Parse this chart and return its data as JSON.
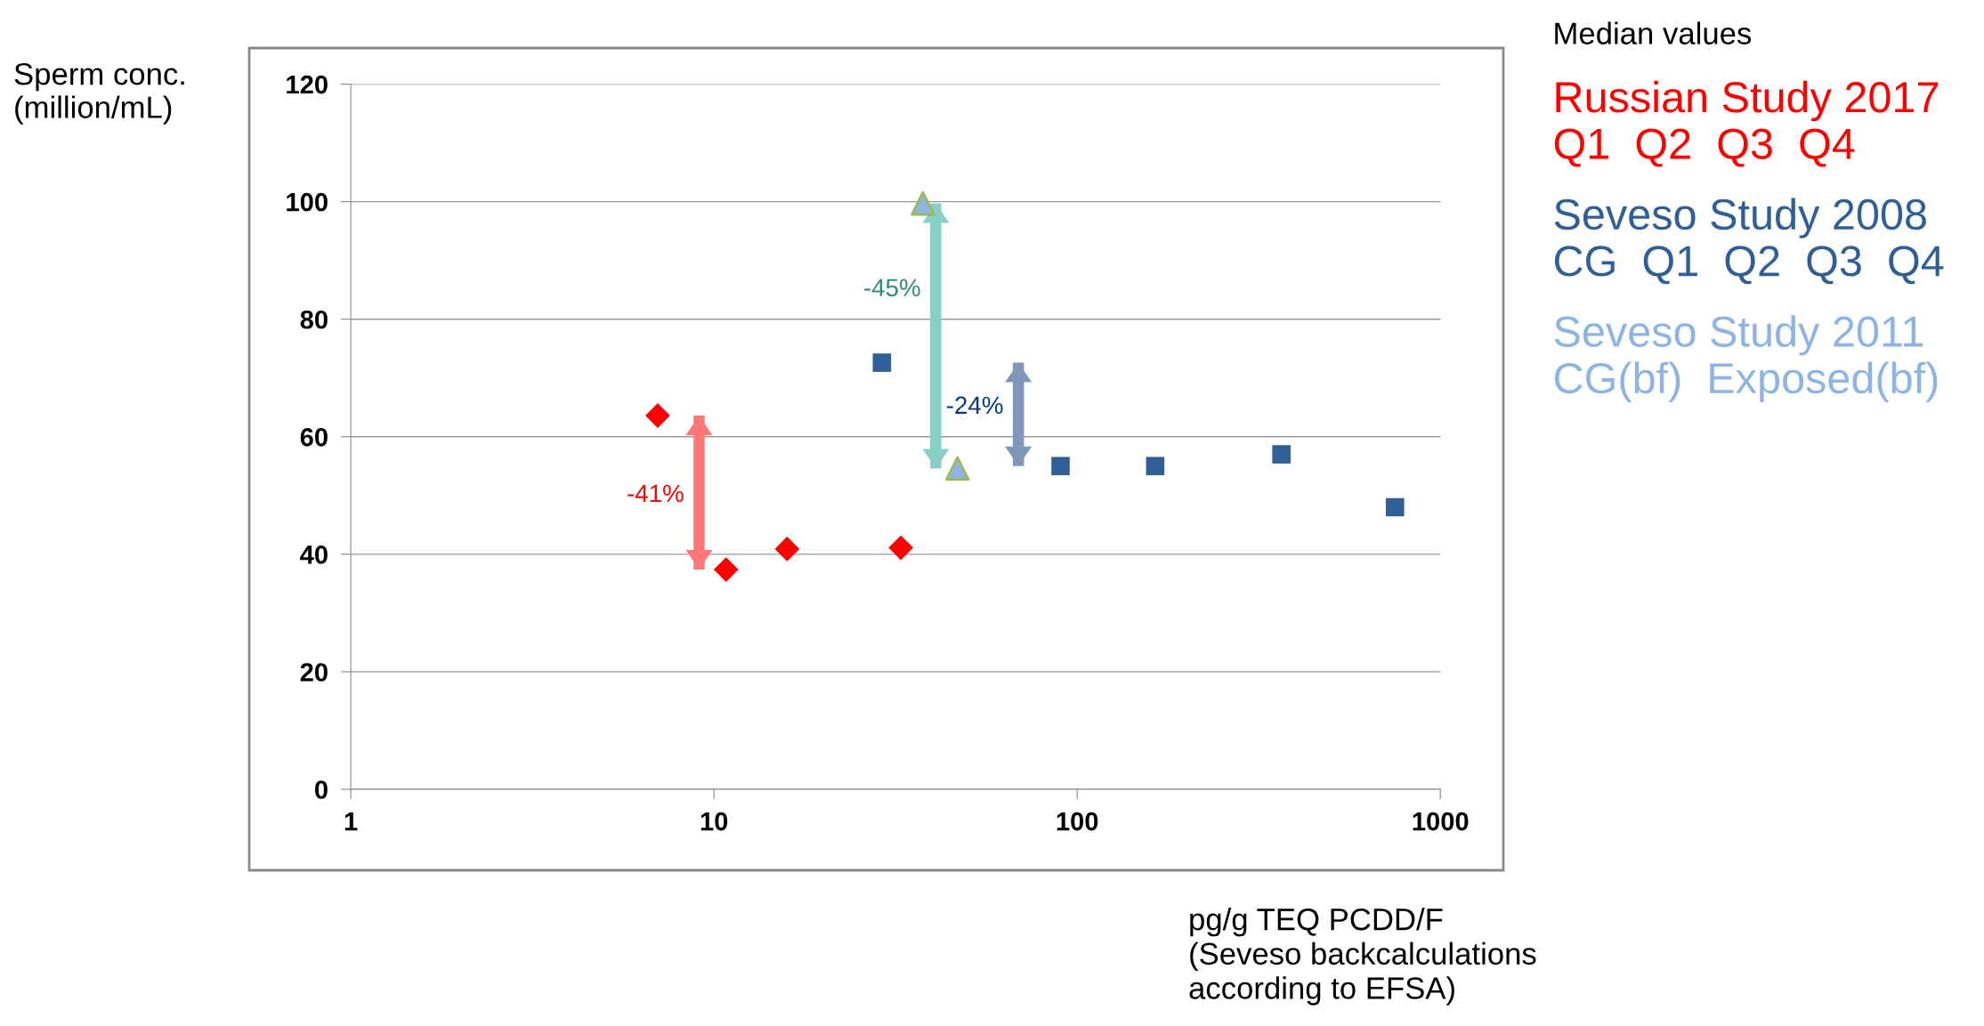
{
  "chart_data": {
    "type": "scatter",
    "xlabel": "pg/g TEQ PCDD/F\n(Seveso backcalculations\naccording to EFSA)",
    "ylabel": "Sperm conc.\n(million/mL)",
    "legend_title": "Median values",
    "log": "x",
    "xlim": [
      1,
      1000
    ],
    "xticks": [
      1,
      10,
      100,
      1000
    ],
    "ylim": [
      0,
      120
    ],
    "yticks": [
      0,
      20,
      40,
      60,
      80,
      100,
      120
    ],
    "grid": "y",
    "legend": "right",
    "series": [
      {
        "name": "Russian Study 2017\nQ1  Q2  Q3  Q4",
        "color": "#ff0000",
        "marker": "diamond",
        "x": [
          7,
          10.8,
          15.9,
          32.7
        ],
        "values": [
          63.6,
          37.4,
          40.9,
          41.1
        ]
      },
      {
        "name": "Seveso Study 2008\nCG  Q1  Q2  Q3  Q4",
        "color": "#2f5f96",
        "marker": "square",
        "x": [
          29,
          90,
          164,
          365,
          750
        ],
        "values": [
          72.6,
          55,
          55,
          57,
          48
        ]
      },
      {
        "name": "Seveso Study 2011\nCG(bf)  Exposed(bf)",
        "color": "#8eb4e3",
        "marker": "triangle",
        "x": [
          37.6,
          46.8
        ],
        "values": [
          99.7,
          54.6
        ]
      },
      {
        "type": "line",
        "color": "#ff7777",
        "x": [
          9.1,
          9.1
        ],
        "values": [
          63.6,
          37.4
        ]
      },
      {
        "type": "line",
        "color": "#7f97b8",
        "x": [
          68.9,
          68.9
        ],
        "values": [
          72.6,
          55
        ]
      },
      {
        "type": "line",
        "color": "#88cfc8",
        "x": [
          40.8,
          40.8
        ],
        "values": [
          99.7,
          54.6
        ]
      }
    ],
    "annotations": [
      {
        "text": "-41%",
        "x": 9.1,
        "y": 50
      },
      {
        "text": "-24%",
        "x": 68.9,
        "y": 65
      },
      {
        "text": "-45%",
        "x": 40.8,
        "y": 85
      }
    ]
  }
}
